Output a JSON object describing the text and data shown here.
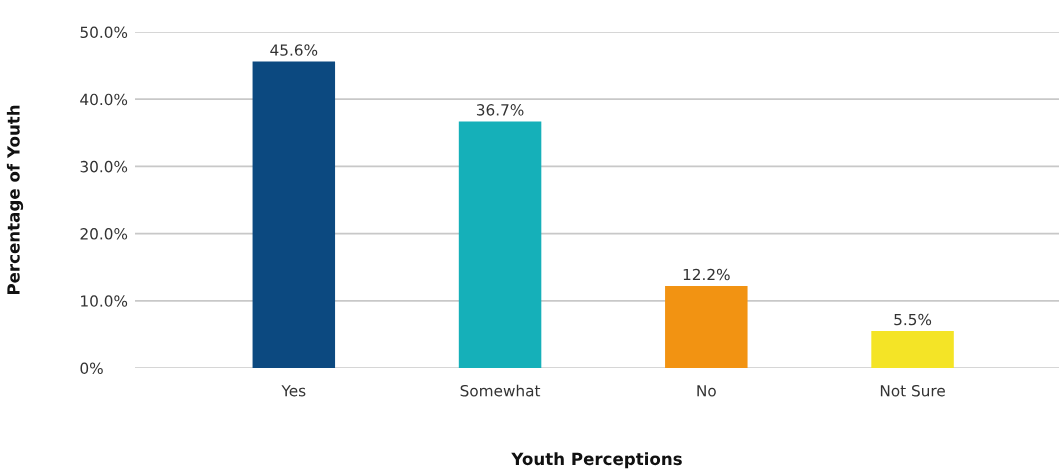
{
  "chart_data": {
    "type": "bar",
    "xlabel": "Youth Perceptions",
    "ylabel": "Percentage of Youth",
    "categories": [
      "Yes",
      "Somewhat",
      "No",
      "Not Sure"
    ],
    "values": [
      45.6,
      36.7,
      12.2,
      5.5
    ],
    "colors": [
      "#0c4980",
      "#15b0b9",
      "#f29312",
      "#f4e426"
    ],
    "value_labels": [
      "45.6%",
      "36.7%",
      "12.2%",
      "5.5%"
    ],
    "ylim": [
      0,
      50
    ],
    "yticks": [
      {
        "value": 0,
        "label": "0%"
      },
      {
        "value": 10,
        "label": "10.0%"
      },
      {
        "value": 20,
        "label": "20.0%"
      },
      {
        "value": 30,
        "label": "30.0%"
      },
      {
        "value": 40,
        "label": "40.0%"
      },
      {
        "value": 50,
        "label": "50.0%"
      }
    ],
    "grid": "y",
    "legend": false
  }
}
